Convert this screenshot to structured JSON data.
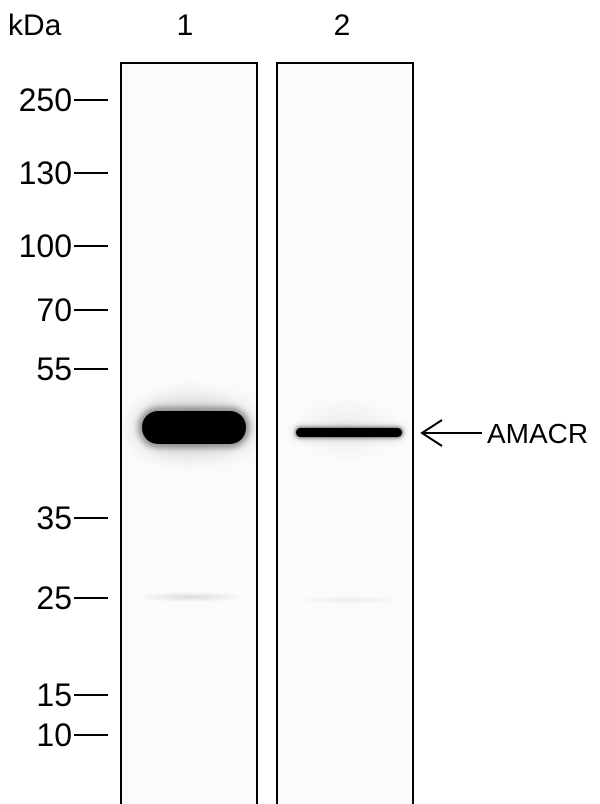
{
  "blot": {
    "unit_label": "kDa",
    "lanes": [
      {
        "label": "1"
      },
      {
        "label": "2"
      }
    ],
    "markers": [
      "250",
      "130",
      "100",
      "70",
      "55",
      "35",
      "25",
      "15",
      "10"
    ],
    "target": {
      "label": "AMACR"
    }
  }
}
